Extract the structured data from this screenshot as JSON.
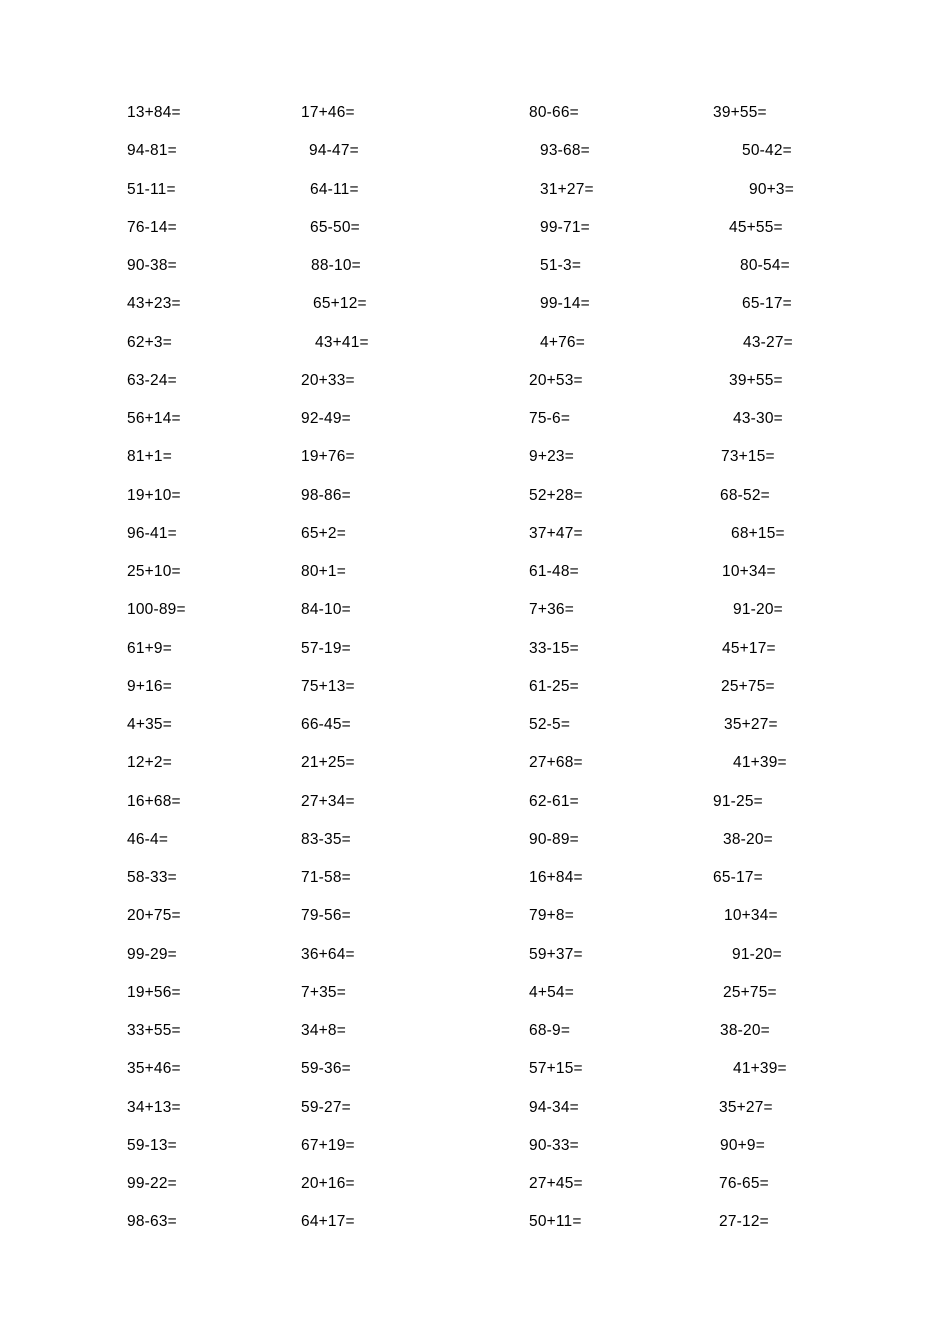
{
  "page": {
    "type": "math-worksheet",
    "background_color": "#ffffff",
    "text_color": "#000000"
  },
  "worksheet": {
    "column_count": 4,
    "row_count": 30,
    "rows": [
      {
        "cells": [
          {
            "text": "13+84=",
            "indent": 0
          },
          {
            "text": "17+46=",
            "indent": 0
          },
          {
            "text": "80-66=",
            "indent": 0
          },
          {
            "text": "39+55=",
            "indent": 0
          }
        ]
      },
      {
        "cells": [
          {
            "text": "94-81=",
            "indent": 0
          },
          {
            "text": "94-47=",
            "indent": 8
          },
          {
            "text": "93-68=",
            "indent": 11
          },
          {
            "text": "50-42=",
            "indent": 29
          }
        ]
      },
      {
        "cells": [
          {
            "text": "51-11=",
            "indent": 0
          },
          {
            "text": "64-11=",
            "indent": 9
          },
          {
            "text": "31+27=",
            "indent": 11
          },
          {
            "text": "90+3=",
            "indent": 36
          }
        ]
      },
      {
        "cells": [
          {
            "text": "76-14=",
            "indent": 0
          },
          {
            "text": "65-50=",
            "indent": 9
          },
          {
            "text": "99-71=",
            "indent": 11
          },
          {
            "text": "45+55=",
            "indent": 16
          }
        ]
      },
      {
        "cells": [
          {
            "text": "90-38=",
            "indent": 0
          },
          {
            "text": "88-10=",
            "indent": 10
          },
          {
            "text": "51-3=",
            "indent": 11
          },
          {
            "text": "80-54=",
            "indent": 27
          }
        ]
      },
      {
        "cells": [
          {
            "text": "43+23=",
            "indent": 0
          },
          {
            "text": "65+12=",
            "indent": 12
          },
          {
            "text": "99-14=",
            "indent": 11
          },
          {
            "text": "65-17=",
            "indent": 29
          }
        ]
      },
      {
        "cells": [
          {
            "text": "62+3=",
            "indent": 0
          },
          {
            "text": "43+41=",
            "indent": 14
          },
          {
            "text": "4+76=",
            "indent": 11
          },
          {
            "text": "43-27=",
            "indent": 30
          }
        ]
      },
      {
        "cells": [
          {
            "text": "63-24=",
            "indent": 0
          },
          {
            "text": "20+33=",
            "indent": 0
          },
          {
            "text": "20+53=",
            "indent": 0
          },
          {
            "text": "39+55=",
            "indent": 16
          }
        ]
      },
      {
        "cells": [
          {
            "text": "56+14=",
            "indent": 0
          },
          {
            "text": "92-49=",
            "indent": 0
          },
          {
            "text": "75-6=",
            "indent": 0
          },
          {
            "text": "43-30=",
            "indent": 20
          }
        ]
      },
      {
        "cells": [
          {
            "text": "81+1=",
            "indent": 0
          },
          {
            "text": "19+76=",
            "indent": 0
          },
          {
            "text": "9+23=",
            "indent": 0
          },
          {
            "text": "73+15=",
            "indent": 8
          }
        ]
      },
      {
        "cells": [
          {
            "text": "19+10=",
            "indent": 0
          },
          {
            "text": "98-86=",
            "indent": 0
          },
          {
            "text": "52+28=",
            "indent": 0
          },
          {
            "text": "68-52=",
            "indent": 7
          }
        ]
      },
      {
        "cells": [
          {
            "text": "96-41=",
            "indent": 0
          },
          {
            "text": "65+2=",
            "indent": 0
          },
          {
            "text": "37+47=",
            "indent": 0
          },
          {
            "text": "68+15=",
            "indent": 18
          }
        ]
      },
      {
        "cells": [
          {
            "text": "25+10=",
            "indent": 0
          },
          {
            "text": "80+1=",
            "indent": 0
          },
          {
            "text": "61-48=",
            "indent": 0
          },
          {
            "text": "10+34=",
            "indent": 9
          }
        ]
      },
      {
        "cells": [
          {
            "text": "100-89=",
            "indent": 0
          },
          {
            "text": "84-10=",
            "indent": 0
          },
          {
            "text": "7+36=",
            "indent": 0
          },
          {
            "text": "91-20=",
            "indent": 20
          }
        ]
      },
      {
        "cells": [
          {
            "text": "61+9=",
            "indent": 0
          },
          {
            "text": "57-19=",
            "indent": 0
          },
          {
            "text": "33-15=",
            "indent": 0
          },
          {
            "text": "45+17=",
            "indent": 9
          }
        ]
      },
      {
        "cells": [
          {
            "text": "9+16=",
            "indent": 0
          },
          {
            "text": "75+13=",
            "indent": 0
          },
          {
            "text": "61-25=",
            "indent": 0
          },
          {
            "text": "25+75=",
            "indent": 8
          }
        ]
      },
      {
        "cells": [
          {
            "text": "4+35=",
            "indent": 0
          },
          {
            "text": "66-45=",
            "indent": 0
          },
          {
            "text": "52-5=",
            "indent": 0
          },
          {
            "text": "35+27=",
            "indent": 11
          }
        ]
      },
      {
        "cells": [
          {
            "text": "12+2=",
            "indent": 0
          },
          {
            "text": "21+25=",
            "indent": 0
          },
          {
            "text": "27+68=",
            "indent": 0
          },
          {
            "text": "41+39=",
            "indent": 20
          }
        ]
      },
      {
        "cells": [
          {
            "text": "16+68=",
            "indent": 0
          },
          {
            "text": "27+34=",
            "indent": 0
          },
          {
            "text": "62-61=",
            "indent": 0
          },
          {
            "text": "91-25=",
            "indent": 0
          }
        ]
      },
      {
        "cells": [
          {
            "text": "46-4=",
            "indent": 0
          },
          {
            "text": "83-35=",
            "indent": 0
          },
          {
            "text": "90-89=",
            "indent": 0
          },
          {
            "text": "38-20=",
            "indent": 10
          }
        ]
      },
      {
        "cells": [
          {
            "text": "58-33=",
            "indent": 0
          },
          {
            "text": "71-58=",
            "indent": 0
          },
          {
            "text": "16+84=",
            "indent": 0
          },
          {
            "text": "65-17=",
            "indent": 0
          }
        ]
      },
      {
        "cells": [
          {
            "text": "20+75=",
            "indent": 0
          },
          {
            "text": "79-56=",
            "indent": 0
          },
          {
            "text": "79+8=",
            "indent": 0
          },
          {
            "text": "10+34=",
            "indent": 11
          }
        ]
      },
      {
        "cells": [
          {
            "text": "99-29=",
            "indent": 0
          },
          {
            "text": "36+64=",
            "indent": 0
          },
          {
            "text": "59+37=",
            "indent": 0
          },
          {
            "text": "91-20=",
            "indent": 19
          }
        ]
      },
      {
        "cells": [
          {
            "text": "19+56=",
            "indent": 0
          },
          {
            "text": "7+35=",
            "indent": 0
          },
          {
            "text": "4+54=",
            "indent": 0
          },
          {
            "text": "25+75=",
            "indent": 10
          }
        ]
      },
      {
        "cells": [
          {
            "text": "33+55=",
            "indent": 0
          },
          {
            "text": "34+8=",
            "indent": 0
          },
          {
            "text": "68-9=",
            "indent": 0
          },
          {
            "text": "38-20=",
            "indent": 7
          }
        ]
      },
      {
        "cells": [
          {
            "text": "35+46=",
            "indent": 0
          },
          {
            "text": "59-36=",
            "indent": 0
          },
          {
            "text": "57+15=",
            "indent": 0
          },
          {
            "text": "41+39=",
            "indent": 20
          }
        ]
      },
      {
        "cells": [
          {
            "text": "34+13=",
            "indent": 0
          },
          {
            "text": "59-27=",
            "indent": 0
          },
          {
            "text": "94-34=",
            "indent": 0
          },
          {
            "text": "35+27=",
            "indent": 6
          }
        ]
      },
      {
        "cells": [
          {
            "text": "59-13=",
            "indent": 0
          },
          {
            "text": "67+19=",
            "indent": 0
          },
          {
            "text": "90-33=",
            "indent": 0
          },
          {
            "text": "90+9=",
            "indent": 7
          }
        ]
      },
      {
        "cells": [
          {
            "text": "99-22=",
            "indent": 0
          },
          {
            "text": "20+16=",
            "indent": 0
          },
          {
            "text": "27+45=",
            "indent": 0
          },
          {
            "text": "76-65=",
            "indent": 6
          }
        ]
      },
      {
        "cells": [
          {
            "text": "98-63=",
            "indent": 0
          },
          {
            "text": "64+17=",
            "indent": 0
          },
          {
            "text": "50+11=",
            "indent": 0
          },
          {
            "text": "27-12=",
            "indent": 6
          }
        ]
      }
    ]
  }
}
